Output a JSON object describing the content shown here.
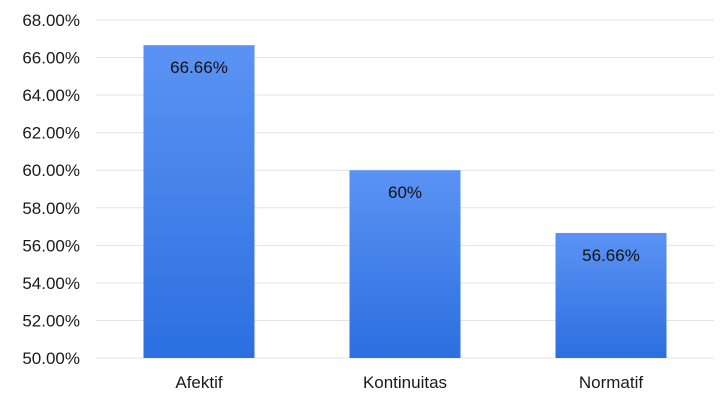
{
  "chart_data": {
    "type": "bar",
    "title": "",
    "xlabel": "",
    "ylabel": "",
    "categories": [
      "Afektif",
      "Kontinuitas",
      "Normatif"
    ],
    "values": [
      66.66,
      60,
      56.66
    ],
    "data_labels": [
      "66.66%",
      "60%",
      "56.66%"
    ],
    "ylim": [
      50,
      68
    ],
    "yticks": [
      50,
      52,
      54,
      56,
      58,
      60,
      62,
      64,
      66,
      68
    ],
    "ytick_labels": [
      "50.00%",
      "52.00%",
      "54.00%",
      "56.00%",
      "58.00%",
      "60.00%",
      "62.00%",
      "64.00%",
      "66.00%",
      "68.00%"
    ],
    "grid": true,
    "legend": "none",
    "colors": {
      "bar_top": "#5b93f4",
      "bar_bottom": "#2c6fe0",
      "grid": "#e3e3e3"
    }
  }
}
